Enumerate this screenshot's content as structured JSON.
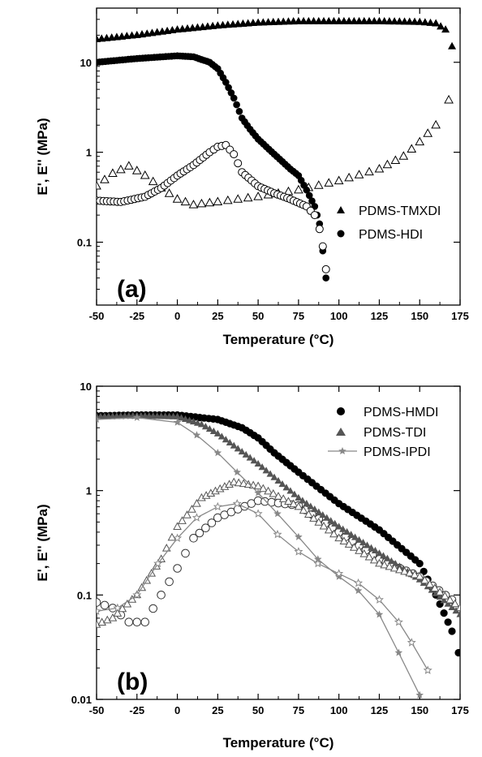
{
  "chart_data": [
    {
      "type": "scatter",
      "panel_label": "(a)",
      "xlabel": "Temperature (°C)",
      "ylabel": "E', E'' (MPa)",
      "xlim": [
        -50,
        175
      ],
      "ylim": [
        0.02,
        40
      ],
      "yscale": "log",
      "x_ticks": [
        "-50",
        "-25",
        "0",
        "25",
        "50",
        "75",
        "100",
        "125",
        "150",
        "175"
      ],
      "y_ticks": [
        {
          "value": 0.1,
          "label": "0.1"
        },
        {
          "value": 1,
          "label": "1"
        },
        {
          "value": 10,
          "label": "10"
        }
      ],
      "legend_position": "right",
      "legend_entries": [
        "PDMS-TMXDI",
        "PDMS-HDI"
      ],
      "series": [
        {
          "name": "PDMS-TMXDI",
          "quantity": "E'",
          "marker": "triangle",
          "fill": "filled",
          "x": [
            -50,
            -25,
            0,
            25,
            50,
            75,
            100,
            125,
            150,
            160,
            166,
            170
          ],
          "y": [
            18,
            20,
            23,
            25.5,
            27.5,
            28.5,
            28.5,
            28.5,
            28,
            27,
            23,
            15
          ]
        },
        {
          "name": "PDMS-TMXDI",
          "quantity": "E''",
          "marker": "triangle",
          "fill": "open",
          "x": [
            -50,
            -40,
            -30,
            -20,
            -10,
            0,
            10,
            25,
            50,
            75,
            100,
            125,
            140,
            150,
            160,
            168
          ],
          "y": [
            0.42,
            0.58,
            0.7,
            0.55,
            0.4,
            0.3,
            0.26,
            0.28,
            0.32,
            0.38,
            0.48,
            0.65,
            0.9,
            1.3,
            2.0,
            3.8
          ]
        },
        {
          "name": "PDMS-HDI",
          "quantity": "E'",
          "marker": "circle",
          "fill": "filled",
          "x": [
            -50,
            -25,
            0,
            10,
            20,
            25,
            30,
            35,
            40,
            45,
            50,
            60,
            70,
            75,
            80,
            85,
            88,
            90,
            92
          ],
          "y": [
            10,
            11,
            11.8,
            11.5,
            10,
            8.5,
            6,
            4,
            2.4,
            1.8,
            1.4,
            0.95,
            0.65,
            0.55,
            0.38,
            0.25,
            0.16,
            0.08,
            0.04
          ]
        },
        {
          "name": "PDMS-HDI",
          "quantity": "E''",
          "marker": "circle",
          "fill": "open",
          "x": [
            -50,
            -35,
            -20,
            -10,
            0,
            10,
            20,
            25,
            30,
            35,
            40,
            50,
            60,
            70,
            80,
            85,
            88,
            90,
            92
          ],
          "y": [
            0.29,
            0.28,
            0.32,
            0.4,
            0.55,
            0.72,
            1.0,
            1.15,
            1.2,
            0.95,
            0.6,
            0.42,
            0.35,
            0.3,
            0.25,
            0.2,
            0.14,
            0.09,
            0.05
          ]
        }
      ]
    },
    {
      "type": "scatter",
      "panel_label": "(b)",
      "xlabel": "Temperature (°C)",
      "ylabel": "E', E'' (MPa)",
      "xlim": [
        -50,
        175
      ],
      "ylim": [
        0.01,
        10
      ],
      "yscale": "log",
      "x_ticks": [
        "-50",
        "-25",
        "0",
        "25",
        "50",
        "75",
        "100",
        "125",
        "150",
        "175"
      ],
      "y_ticks": [
        {
          "value": 0.01,
          "label": "0.01"
        },
        {
          "value": 0.1,
          "label": "0.1"
        },
        {
          "value": 1,
          "label": "1"
        },
        {
          "value": 10,
          "label": "10"
        }
      ],
      "legend_position": "top-right",
      "legend_entries": [
        "PDMS-HMDI",
        "PDMS-TDI",
        "PDMS-IPDI"
      ],
      "series": [
        {
          "name": "PDMS-HMDI",
          "quantity": "E'",
          "marker": "circle",
          "fill": "filled",
          "x": [
            -50,
            -25,
            0,
            25,
            40,
            50,
            60,
            75,
            100,
            125,
            150,
            160,
            170,
            174
          ],
          "y": [
            5.2,
            5.3,
            5.3,
            4.8,
            4.0,
            3.2,
            2.3,
            1.5,
            0.75,
            0.42,
            0.2,
            0.1,
            0.045,
            0.028
          ]
        },
        {
          "name": "PDMS-HMDI",
          "quantity": "E''",
          "marker": "circle",
          "fill": "open",
          "x": [
            -50,
            -40,
            -30,
            -20,
            -10,
            0,
            10,
            25,
            50,
            75,
            100,
            125,
            150,
            170
          ],
          "y": [
            0.085,
            0.075,
            0.055,
            0.055,
            0.1,
            0.18,
            0.35,
            0.55,
            0.8,
            0.72,
            0.4,
            0.22,
            0.15,
            0.09
          ]
        },
        {
          "name": "PDMS-TDI",
          "quantity": "E'",
          "marker": "triangle",
          "fill": "filled",
          "x": [
            -50,
            -25,
            0,
            15,
            25,
            50,
            75,
            100,
            125,
            150,
            175
          ],
          "y": [
            5.1,
            5.2,
            5.1,
            4.3,
            3.5,
            1.8,
            0.85,
            0.45,
            0.25,
            0.14,
            0.065
          ]
        },
        {
          "name": "PDMS-TDI",
          "quantity": "E''",
          "marker": "triangle",
          "fill": "open",
          "x": [
            -50,
            -40,
            -25,
            -10,
            0,
            15,
            35,
            50,
            75,
            100,
            125,
            150,
            175
          ],
          "y": [
            0.052,
            0.06,
            0.1,
            0.22,
            0.45,
            0.85,
            1.2,
            1.1,
            0.7,
            0.35,
            0.2,
            0.15,
            0.075
          ]
        },
        {
          "name": "PDMS-IPDI",
          "quantity": "E'",
          "marker": "star",
          "fill": "filled",
          "x": [
            -50,
            -25,
            0,
            12,
            25,
            37,
            50,
            62,
            75,
            87,
            100,
            112,
            125,
            137,
            150
          ],
          "y": [
            4.8,
            5.0,
            4.5,
            3.4,
            2.3,
            1.5,
            0.95,
            0.6,
            0.36,
            0.22,
            0.15,
            0.11,
            0.065,
            0.028,
            0.011
          ]
        },
        {
          "name": "PDMS-IPDI",
          "quantity": "E''",
          "marker": "star",
          "fill": "open",
          "x": [
            -50,
            -37,
            -25,
            -12,
            0,
            12,
            25,
            37,
            50,
            62,
            75,
            87,
            100,
            112,
            125,
            137,
            145,
            155
          ],
          "y": [
            0.07,
            0.075,
            0.1,
            0.2,
            0.35,
            0.55,
            0.7,
            0.75,
            0.6,
            0.38,
            0.26,
            0.2,
            0.16,
            0.13,
            0.09,
            0.055,
            0.035,
            0.019
          ]
        }
      ]
    }
  ]
}
